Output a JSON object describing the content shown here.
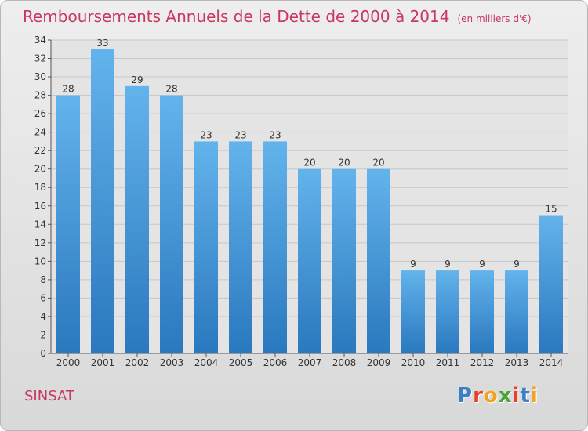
{
  "title": "Remboursements Annuels de la Dette de 2000 à 2014",
  "unit": "(en milliers d'€)",
  "commune": "SINSAT",
  "logo": {
    "text": "Proxiti",
    "letter_colors": [
      "#3b7fc4",
      "#e8402a",
      "#f2a31b",
      "#4aa33a",
      "#e8402a",
      "#3b7fc4",
      "#f2a31b"
    ]
  },
  "colors": {
    "title": "#c8375f",
    "bar_top": "#63b3ec",
    "bar_bottom": "#2a78be",
    "grid": "#c7c7c7"
  },
  "chart_data": {
    "type": "bar",
    "categories": [
      "2000",
      "2001",
      "2002",
      "2003",
      "2004",
      "2005",
      "2006",
      "2007",
      "2008",
      "2009",
      "2010",
      "2011",
      "2012",
      "2013",
      "2014"
    ],
    "values": [
      28,
      33,
      29,
      28,
      23,
      23,
      23,
      20,
      20,
      20,
      9,
      9,
      9,
      9,
      15
    ],
    "ylim": [
      0,
      34
    ],
    "yticks": [
      0,
      2,
      4,
      6,
      8,
      10,
      12,
      14,
      16,
      18,
      20,
      22,
      24,
      26,
      28,
      30,
      32,
      34
    ],
    "grid": true,
    "data_labels": true
  }
}
